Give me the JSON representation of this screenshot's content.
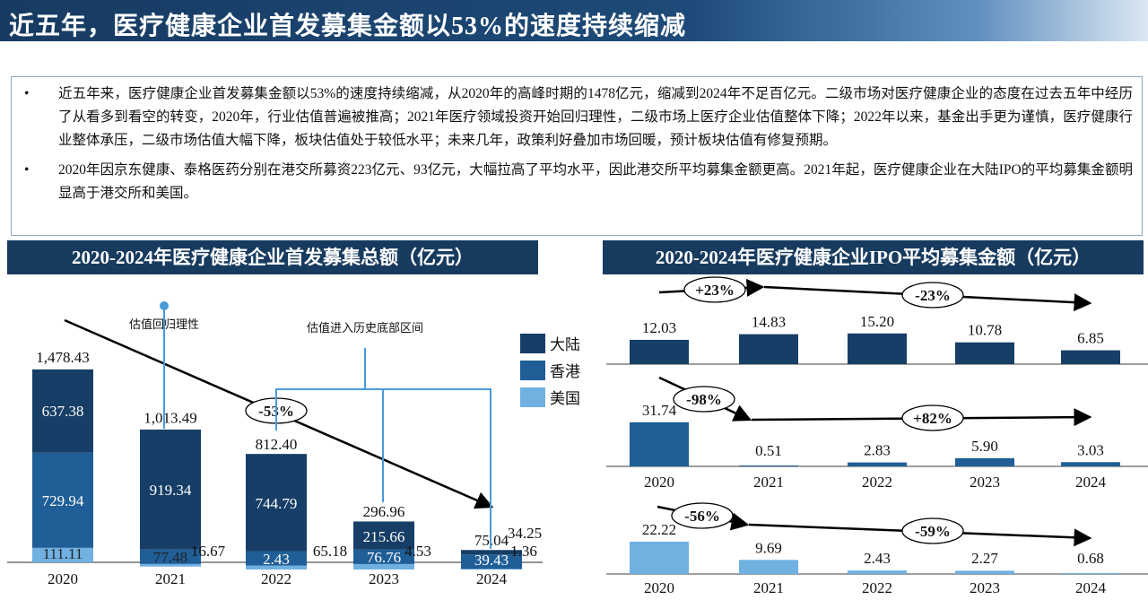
{
  "title": "近五年，医疗健康企业首发募集金额以53%的速度持续缩减",
  "summary": {
    "bullets": [
      "近五年来，医疗健康企业首发募集金额以53%的速度持续缩减，从2020年的高峰时期的1478亿元，缩减到2024年不足百亿元。二级市场对医疗健康企业的态度在过去五年中经历了从看多到看空的转变，2020年，行业估值普遍被推高；2021年医疗领域投资开始回归理性，二级市场上医疗企业估值整体下降；2022年以来，基金出手更为谨慎，医疗健康行业整体承压，二级市场估值大幅下降，板块估值处于较低水平；未来几年，政策利好叠加市场回暖，预计板块估值有修复预期。",
      "2020年因京东健康、泰格医药分别在港交所募资223亿元、93亿元，大幅拉高了平均水平，因此港交所平均募集金额更高。2021年起，医疗健康企业在大陆IPO的平均募集金额明显高于港交所和美国。"
    ]
  },
  "colors": {
    "mainland": "#163e66",
    "hongkong": "#1f5e96",
    "us": "#70b1e2",
    "annotation": "#4a9ad8"
  },
  "chart_data": [
    {
      "type": "bar",
      "stacked": true,
      "title": "2020-2024年医疗健康企业首发募集总额（亿元）",
      "categories": [
        "2020",
        "2021",
        "2022",
        "2023",
        "2024"
      ],
      "series": [
        {
          "name": "美国",
          "values": [
            111.11,
            77.48,
            2.43,
            4.53,
            1.36
          ]
        },
        {
          "name": "香港",
          "values": [
            729.94,
            16.67,
            65.18,
            76.76,
            39.43
          ]
        },
        {
          "name": "大陆",
          "values": [
            637.38,
            919.34,
            744.79,
            215.66,
            34.25
          ]
        }
      ],
      "totals": [
        "1,478.43",
        "1,013.49",
        "812.40",
        "296.96",
        "75.04"
      ],
      "segment_labels": {
        "美国": [
          "111.11",
          "77.48",
          "2.43",
          "4.53",
          "1.36"
        ],
        "香港": [
          "729.94",
          "16.67",
          "65.18",
          "76.76",
          "39.43"
        ],
        "大陆": [
          "637.38",
          "919.34",
          "744.79",
          "215.66",
          "34.25"
        ]
      },
      "legend": [
        "大陆",
        "香港",
        "美国"
      ],
      "legend_position": "right",
      "annotations": {
        "trend": "-53%",
        "note_2021": "估值回归理性",
        "note_2022_2024": "估值进入历史底部区间"
      }
    },
    {
      "type": "bar",
      "title": "2020-2024年医疗健康企业IPO平均募集金额（亿元）",
      "panels": [
        {
          "series": "大陆",
          "categories": [
            "2020",
            "2021",
            "2022",
            "2023",
            "2024"
          ],
          "values": [
            12.03,
            14.83,
            15.2,
            10.78,
            6.85
          ],
          "labels": [
            "12.03",
            "14.83",
            "15.20",
            "10.78",
            "6.85"
          ],
          "changes": [
            "+23%",
            "-23%"
          ],
          "show_years": false
        },
        {
          "series": "香港",
          "categories": [
            "2020",
            "2021",
            "2022",
            "2023",
            "2024"
          ],
          "values": [
            31.74,
            0.51,
            2.83,
            5.9,
            3.03
          ],
          "labels": [
            "31.74",
            "0.51",
            "2.83",
            "5.90",
            "3.03"
          ],
          "changes": [
            "-98%",
            "+82%"
          ],
          "show_years": true
        },
        {
          "series": "美国",
          "categories": [
            "2020",
            "2021",
            "2022",
            "2023",
            "2024"
          ],
          "values": [
            22.22,
            9.69,
            2.43,
            2.27,
            0.68
          ],
          "labels": [
            "22.22",
            "9.69",
            "2.43",
            "2.27",
            "0.68"
          ],
          "changes": [
            "-56%",
            "-59%"
          ],
          "show_years": true
        }
      ]
    }
  ]
}
